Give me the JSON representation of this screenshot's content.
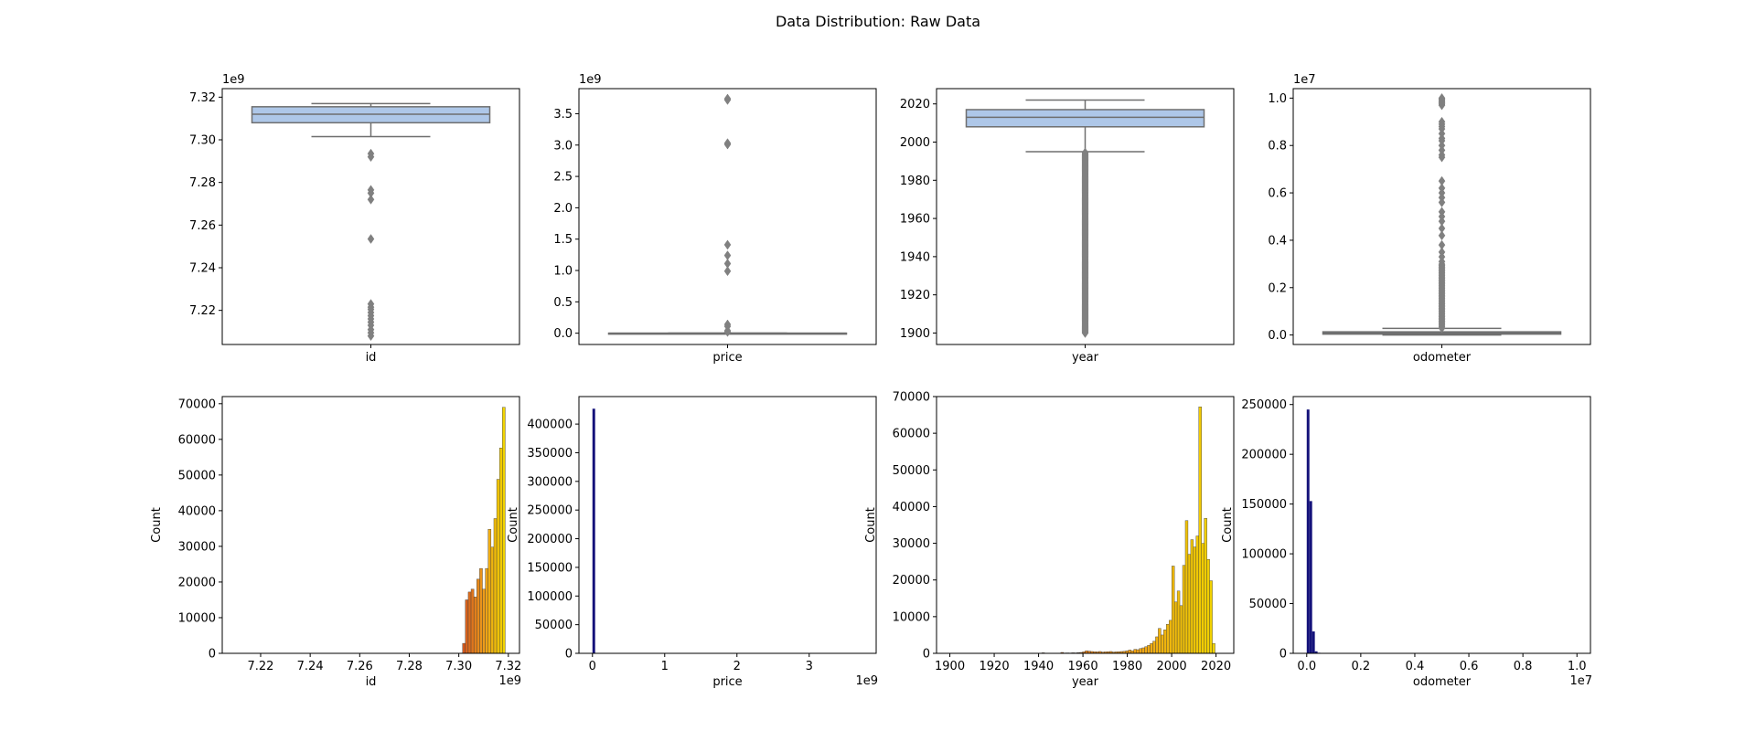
{
  "suptitle": "Data Distribution: Raw Data",
  "colors": {
    "box_fill": "#aec7e8",
    "box_line": "#6f6f6f",
    "outlier": "#808080",
    "hist_dark": "#14127a",
    "hist_gradient": [
      "#d45a1f",
      "#ee9c1a",
      "#f1d300"
    ],
    "hist_gradient_year": [
      "#b21f1f",
      "#e0641a",
      "#ee9c1a",
      "#f1d300"
    ],
    "hist_edge": "#3a3a3a"
  },
  "chart_data": [
    {
      "type": "box",
      "id": "box-id",
      "xlabel": "id",
      "ylabel": "",
      "ylim": [
        7.204,
        7.324
      ],
      "yticks": [
        7.22,
        7.24,
        7.26,
        7.28,
        7.3,
        7.32
      ],
      "tick_decimals": 2,
      "offset_text": "1e9",
      "stats": {
        "whislo": 7.3015,
        "q1": 7.308,
        "med": 7.312,
        "q3": 7.3155,
        "whishi": 7.317
      },
      "outliers": [
        7.2935,
        7.292,
        7.2765,
        7.275,
        7.272,
        7.2535,
        7.223,
        7.2215,
        7.2205,
        7.219,
        7.2175,
        7.216,
        7.2145,
        7.213,
        7.211,
        7.2095,
        7.208
      ]
    },
    {
      "type": "box",
      "id": "box-price",
      "xlabel": "price",
      "ylabel": "",
      "ylim": [
        -0.18,
        3.9
      ],
      "yticks": [
        0,
        0.5,
        1.0,
        1.5,
        2.0,
        2.5,
        3.0,
        3.5
      ],
      "tick_decimals": 1,
      "offset_text": "1e9",
      "stats": {
        "whislo": 0.0,
        "q1": 0.0,
        "med": 0.0,
        "q3": 0.0,
        "whishi": 0.0
      },
      "outliers": [
        3.74,
        3.72,
        3.03,
        3.01,
        1.41,
        1.24,
        1.11,
        0.99,
        0.14,
        0.11,
        0.04,
        0.02
      ]
    },
    {
      "type": "box",
      "id": "box-year",
      "xlabel": "year",
      "ylabel": "",
      "ylim": [
        1894,
        2028
      ],
      "yticks": [
        1900,
        1920,
        1940,
        1960,
        1980,
        2000,
        2020
      ],
      "tick_decimals": 0,
      "offset_text": "",
      "stats": {
        "whislo": 1995,
        "q1": 2008,
        "med": 2013,
        "q3": 2017,
        "whishi": 2022
      },
      "outlier_range": [
        1900,
        1994.5
      ],
      "outlier_step": 0.5
    },
    {
      "type": "box",
      "id": "box-odometer",
      "xlabel": "odometer",
      "ylabel": "",
      "ylim": [
        -0.04,
        1.04
      ],
      "yticks": [
        0.0,
        0.2,
        0.4,
        0.6,
        0.8,
        1.0
      ],
      "tick_decimals": 1,
      "offset_text": "1e7",
      "stats": {
        "whislo": 0.0,
        "q1": 0.0038,
        "med": 0.0086,
        "q3": 0.0134,
        "whishi": 0.028
      },
      "outlier_range": [
        0.029,
        0.3
      ],
      "outlier_step": 0.006,
      "outliers": [
        1.0,
        0.995,
        0.99,
        0.985,
        0.98,
        0.975,
        0.97,
        0.9,
        0.89,
        0.88,
        0.87,
        0.85,
        0.83,
        0.82,
        0.8,
        0.78,
        0.76,
        0.75,
        0.65,
        0.62,
        0.6,
        0.58,
        0.56,
        0.52,
        0.5,
        0.48,
        0.45,
        0.42,
        0.38,
        0.35,
        0.33,
        0.31
      ]
    },
    {
      "type": "bar",
      "id": "hist-id",
      "xlabel": "id",
      "ylabel": "Count",
      "xlim": [
        7.2045,
        7.3245
      ],
      "ylim": [
        0,
        72000
      ],
      "xticks": [
        7.22,
        7.24,
        7.26,
        7.28,
        7.3,
        7.32
      ],
      "x_tick_decimals": 2,
      "x_offset_text": "1e9",
      "yticks": [
        0,
        10000,
        20000,
        30000,
        40000,
        50000,
        60000,
        70000
      ],
      "gradient": "hist_gradient",
      "bin_start": 7.3015,
      "bin_width": 0.00115,
      "values": [
        2800,
        15000,
        17200,
        18000,
        15800,
        20800,
        23800,
        18000,
        23800,
        34800,
        29800,
        37800,
        48800,
        57600,
        69000
      ]
    },
    {
      "type": "bar",
      "id": "hist-price",
      "xlabel": "price",
      "ylabel": "Count",
      "xlim": [
        -0.187,
        3.927
      ],
      "ylim": [
        0,
        448000
      ],
      "xticks": [
        0,
        1,
        2,
        3
      ],
      "x_tick_decimals": 0,
      "x_offset_text": "1e9",
      "yticks": [
        0,
        50000,
        100000,
        150000,
        200000,
        250000,
        300000,
        350000,
        400000
      ],
      "color": "hist_dark",
      "bin_start": 0.0,
      "bin_width": 0.0374,
      "values": [
        426800
      ]
    },
    {
      "type": "bar",
      "id": "hist-year",
      "xlabel": "year",
      "ylabel": "Count",
      "xlim": [
        1894,
        2028
      ],
      "ylim": [
        0,
        70000
      ],
      "xticks": [
        1900,
        1920,
        1940,
        1960,
        1980,
        2000,
        2020
      ],
      "x_tick_decimals": 0,
      "x_offset_text": "",
      "yticks": [
        0,
        10000,
        20000,
        30000,
        40000,
        50000,
        60000,
        70000
      ],
      "gradient": "hist_gradient_year",
      "bin_start": 1900,
      "bin_width": 1.22,
      "values": [
        0,
        0,
        0,
        0,
        0,
        0,
        0,
        0,
        0,
        0,
        0,
        0,
        0,
        0,
        0,
        0,
        0,
        0,
        0,
        0,
        0,
        0,
        0,
        0,
        0,
        0,
        0,
        0,
        0,
        0,
        0,
        0,
        0,
        0,
        150,
        0,
        0,
        0,
        0,
        0,
        0,
        250,
        100,
        120,
        100,
        150,
        120,
        200,
        250,
        400,
        700,
        600,
        500,
        450,
        400,
        500,
        350,
        400,
        450,
        500,
        350,
        400,
        450,
        500,
        550,
        700,
        900,
        700,
        1100,
        1000,
        1300,
        1500,
        1800,
        2200,
        2700,
        3300,
        4500,
        6800,
        5000,
        6400,
        7900,
        9000,
        23800,
        14000,
        17000,
        13000,
        24000,
        36200,
        27000,
        31000,
        29000,
        32000,
        67200,
        30000,
        36800,
        25600,
        19800,
        2700
      ]
    },
    {
      "type": "bar",
      "id": "hist-odometer",
      "xlabel": "odometer",
      "ylabel": "Count",
      "xlim": [
        -0.05,
        1.05
      ],
      "ylim": [
        0,
        258000
      ],
      "xticks": [
        0.0,
        0.2,
        0.4,
        0.6,
        0.8,
        1.0
      ],
      "x_tick_decimals": 1,
      "x_offset_text": "1e7",
      "yticks": [
        0,
        50000,
        100000,
        150000,
        200000,
        250000
      ],
      "color": "hist_dark",
      "bin_start": 0.0,
      "bin_width": 0.01,
      "values": [
        245000,
        153000,
        22000,
        2000,
        600,
        200,
        100,
        50
      ]
    }
  ]
}
